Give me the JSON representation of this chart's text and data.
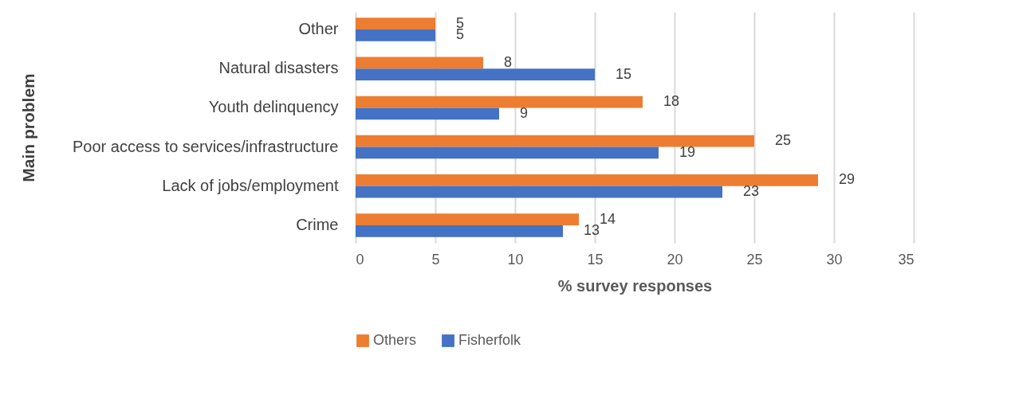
{
  "chart_data": {
    "type": "bar",
    "orientation": "horizontal",
    "xlabel": "% survey responses",
    "ylabel": "Main problem",
    "categories": [
      "Other",
      "Natural disasters",
      "Youth delinquency",
      "Poor access to services/infrastructure",
      "Lack of jobs/employment",
      "Crime"
    ],
    "series": [
      {
        "name": "Others",
        "color": "#ed7d31",
        "values": [
          5,
          8,
          18,
          25,
          29,
          14
        ]
      },
      {
        "name": "Fisherfolk",
        "color": "#4472c4",
        "values": [
          5,
          15,
          9,
          19,
          23,
          13
        ]
      }
    ],
    "xlim": [
      0,
      35
    ],
    "xticks": [
      0,
      5,
      10,
      15,
      20,
      25,
      30,
      35
    ],
    "grid": "x",
    "legend": "bottom",
    "data_labels": true
  }
}
